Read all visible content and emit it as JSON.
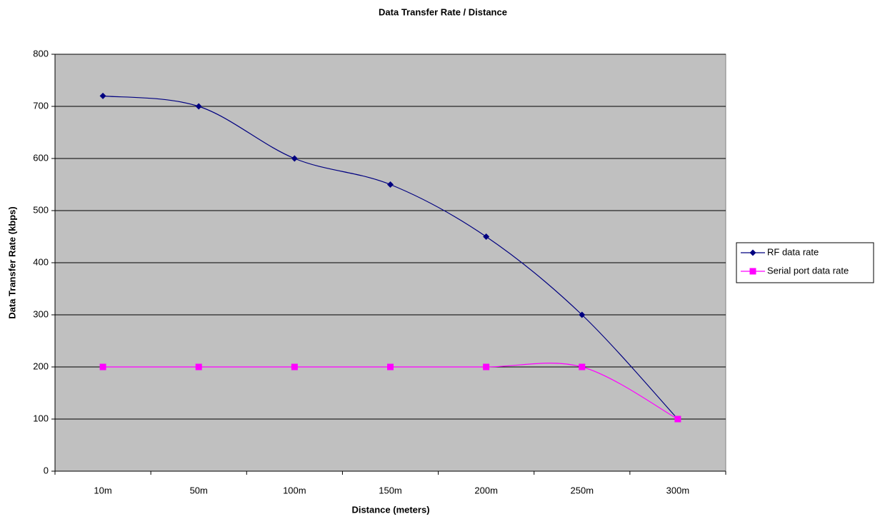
{
  "chart_data": {
    "type": "line",
    "title": "Data Transfer Rate / Distance",
    "x_label": "Distance (meters)",
    "y_label": "Data Transfer Rate (kbps)",
    "categories": [
      "10m",
      "50m",
      "100m",
      "150m",
      "200m",
      "250m",
      "300m"
    ],
    "series": [
      {
        "name": "RF data rate",
        "color": "#000080",
        "marker": "diamond",
        "values": [
          720,
          700,
          600,
          550,
          450,
          300,
          100
        ]
      },
      {
        "name": "Serial port data rate",
        "color": "#ff00ff",
        "marker": "square",
        "values": [
          200,
          200,
          200,
          200,
          200,
          200,
          100
        ]
      }
    ],
    "ylim": [
      0,
      800
    ],
    "yticks": [
      0,
      100,
      200,
      300,
      400,
      500,
      600,
      700,
      800
    ],
    "grid": true,
    "smooth": true,
    "legend": "right"
  }
}
